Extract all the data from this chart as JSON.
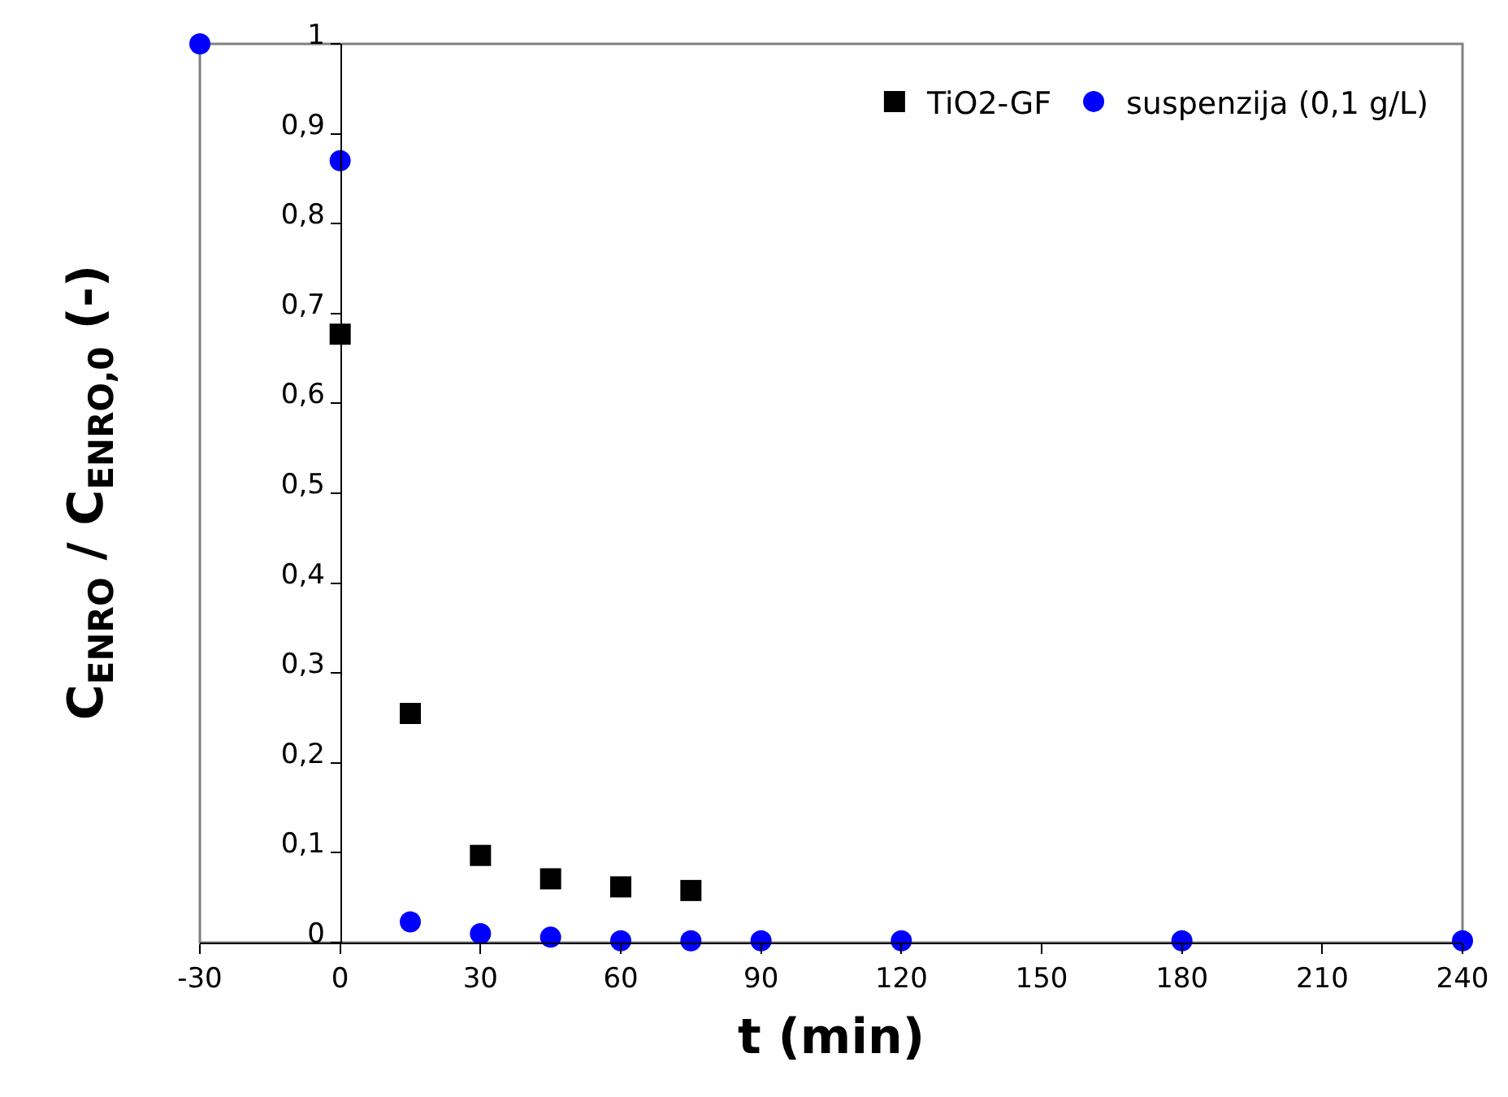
{
  "chart_data": {
    "type": "scatter",
    "xlabel": "t (min)",
    "ylabel": "C$_{ENRO}$ / C$_{ENRO,0}$ (-)",
    "x": [
      -30,
      0,
      15,
      30,
      45,
      60,
      75,
      90,
      120,
      180,
      240
    ],
    "series": [
      {
        "name": "TiO2-GF",
        "color": "#000000",
        "marker": "square",
        "values": [
          null,
          0.677,
          0.255,
          0.097,
          0.071,
          0.062,
          0.058,
          null,
          null,
          null,
          null
        ]
      },
      {
        "name": "suspenzija (0,1 g/L)",
        "color": "#0000ff",
        "marker": "circle",
        "values": [
          1,
          0.87,
          0.023,
          0.01,
          0.006,
          0.002,
          0.002,
          0.002,
          0.002,
          0.002,
          0.002
        ]
      }
    ],
    "xlim": [
      -30,
      240
    ],
    "xticks": [
      -30,
      0,
      30,
      60,
      90,
      120,
      150,
      180,
      210,
      240
    ],
    "ylim": [
      0,
      1
    ],
    "yticks": [
      0,
      {
        "value": 0.1,
        "label": "0,1"
      },
      {
        "value": 0.2,
        "label": "0,2"
      },
      {
        "value": 0.3,
        "label": "0,3"
      },
      {
        "value": 0.4,
        "label": "0,4"
      },
      {
        "value": 0.5,
        "label": "0,5"
      },
      {
        "value": 0.6,
        "label": "0,6"
      },
      {
        "value": 0.7,
        "label": "0,7"
      },
      {
        "value": 0.8,
        "label": "0,8"
      },
      {
        "value": 0.9,
        "label": "0,9"
      },
      1
    ],
    "grid": false,
    "legend": "top right"
  }
}
